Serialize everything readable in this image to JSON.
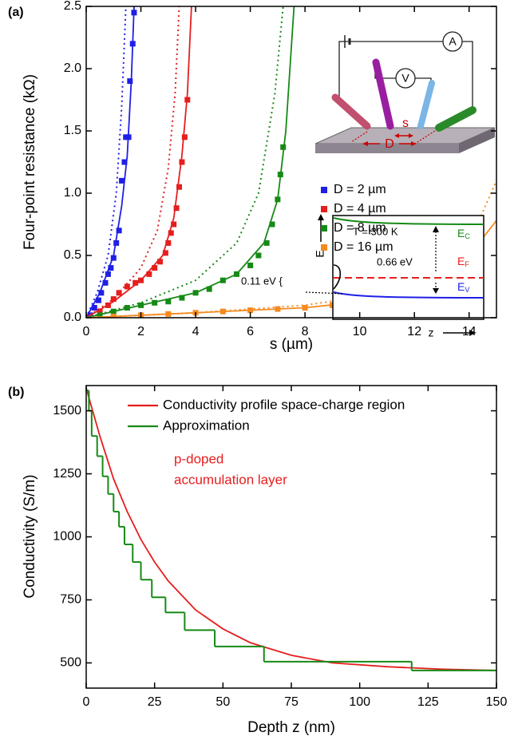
{
  "chart_data": [
    {
      "type": "scatter",
      "panel_label": "(a)",
      "xlabel": "s (µm)",
      "ylabel": "Four-point resistance (kΩ)",
      "xlim": [
        0,
        15
      ],
      "ylim": [
        0,
        2.5
      ],
      "xticks": [
        0,
        2,
        4,
        6,
        8,
        10,
        12,
        14
      ],
      "yticks": [
        {
          "value": 0,
          "label": "0.0"
        },
        0.5,
        {
          "value": 1,
          "label": "1.0"
        },
        1.5,
        {
          "value": 2,
          "label": "2.0"
        },
        2.5
      ],
      "legend": "right",
      "series": [
        {
          "name": "D = 2 µm",
          "color": "#1f1fe6",
          "x": [
            0.15,
            0.3,
            0.45,
            0.55,
            0.7,
            0.8,
            0.9,
            1.0,
            1.1,
            1.2,
            1.3,
            1.4,
            1.45,
            1.55,
            1.6,
            1.7,
            1.75
          ],
          "values": [
            0.02,
            0.08,
            0.14,
            0.2,
            0.28,
            0.35,
            0.4,
            0.48,
            0.6,
            0.7,
            1.1,
            1.25,
            1.45,
            1.45,
            1.9,
            2.2,
            2.45
          ],
          "fit": {
            "x": [
              0,
              0.5,
              1.0,
              1.3,
              1.5,
              1.65,
              1.75
            ],
            "values": [
              0,
              0.2,
              0.5,
              0.9,
              1.3,
              1.9,
              2.5
            ]
          },
          "model": {
            "x": [
              0,
              0.4,
              0.8,
              1.1,
              1.3,
              1.45
            ],
            "values": [
              0,
              0.2,
              0.5,
              1.0,
              1.7,
              2.5
            ]
          }
        },
        {
          "name": "D = 4 µm",
          "color": "#e61e1e",
          "x": [
            0.5,
            0.8,
            1.0,
            1.2,
            1.5,
            1.8,
            2.0,
            2.3,
            2.5,
            2.7,
            2.9,
            3.0,
            3.1,
            3.2,
            3.3,
            3.4,
            3.5,
            3.6,
            3.7
          ],
          "values": [
            0.05,
            0.1,
            0.15,
            0.2,
            0.25,
            0.28,
            0.3,
            0.35,
            0.4,
            0.45,
            0.52,
            0.6,
            0.68,
            0.75,
            0.88,
            1.05,
            1.25,
            1.45,
            1.75
          ],
          "fit": {
            "x": [
              0,
              1,
              2,
              2.8,
              3.2,
              3.5,
              3.7,
              3.85
            ],
            "values": [
              0,
              0.13,
              0.3,
              0.5,
              0.8,
              1.3,
              1.8,
              2.5
            ]
          },
          "model": {
            "x": [
              0,
              1,
              2,
              2.6,
              3.0,
              3.25,
              3.4
            ],
            "values": [
              0,
              0.15,
              0.4,
              0.7,
              1.2,
              1.8,
              2.5
            ]
          }
        },
        {
          "name": "D = 8 µm",
          "color": "#168a16",
          "x": [
            0.5,
            1,
            1.5,
            2,
            2.5,
            3,
            3.5,
            4,
            4.5,
            5,
            5.5,
            6,
            6.3,
            6.6,
            6.8,
            7.0,
            7.1,
            7.2
          ],
          "values": [
            0.02,
            0.05,
            0.08,
            0.1,
            0.12,
            0.13,
            0.16,
            0.2,
            0.23,
            0.3,
            0.35,
            0.42,
            0.5,
            0.6,
            0.75,
            0.95,
            1.15,
            1.37
          ],
          "fit": {
            "x": [
              0,
              2,
              4,
              5.5,
              6.5,
              7,
              7.3,
              7.6
            ],
            "values": [
              0,
              0.1,
              0.2,
              0.35,
              0.6,
              0.95,
              1.5,
              2.5
            ]
          },
          "model": {
            "x": [
              0,
              2,
              4,
              5.5,
              6.3,
              6.9,
              7.2
            ],
            "values": [
              0,
              0.12,
              0.3,
              0.6,
              1.0,
              1.8,
              2.5
            ]
          }
        },
        {
          "name": "D = 16 µm",
          "color": "#f58a1e",
          "x": [
            1,
            2,
            3,
            4,
            5,
            6,
            7,
            8,
            9,
            10,
            11,
            12,
            12.5,
            13,
            13.5,
            14
          ],
          "values": [
            0.01,
            0.02,
            0.03,
            0.04,
            0.05,
            0.06,
            0.07,
            0.08,
            0.1,
            0.12,
            0.16,
            0.22,
            0.25,
            0.3,
            0.36,
            0.48
          ],
          "fit": {
            "x": [
              0,
              4,
              8,
              11,
              13,
              14,
              15
            ],
            "values": [
              0,
              0.04,
              0.08,
              0.15,
              0.3,
              0.5,
              0.78
            ]
          },
          "model": {
            "x": [
              0,
              4,
              8,
              11,
              13,
              14,
              15
            ],
            "values": [
              0,
              0.04,
              0.1,
              0.2,
              0.35,
              0.6,
              1.1
            ]
          }
        }
      ],
      "inset": {
        "voltmeter": "V",
        "ammeter": "A",
        "spacing": "s",
        "distance": "D"
      }
    },
    {
      "type": "line",
      "panel_label": "(b)",
      "xlabel": "Depth z (nm)",
      "ylabel": "Conductivity (S/m)",
      "xlim": [
        0,
        150
      ],
      "ylim": [
        400,
        1600
      ],
      "xticks": [
        0,
        25,
        50,
        75,
        100,
        125,
        150
      ],
      "yticks": [
        500,
        750,
        1000,
        1250,
        1500
      ],
      "legend": "top",
      "series": [
        {
          "name": "Conductivity profile space-charge region",
          "color": "#e61e1e",
          "x": [
            0,
            5,
            10,
            15,
            20,
            25,
            30,
            40,
            50,
            60,
            75,
            90,
            110,
            130,
            150
          ],
          "values": [
            1590,
            1400,
            1230,
            1100,
            990,
            900,
            825,
            710,
            635,
            580,
            530,
            500,
            485,
            475,
            470
          ]
        },
        {
          "name": "Approximation",
          "color": "#168a16",
          "bins": [
            0,
            1,
            2,
            4,
            6,
            8,
            10,
            12,
            14,
            17,
            20,
            24,
            29,
            36,
            47,
            65,
            119,
            150
          ],
          "values": [
            1580,
            1500,
            1400,
            1320,
            1240,
            1170,
            1100,
            1040,
            970,
            900,
            830,
            760,
            700,
            630,
            565,
            505,
            470
          ]
        }
      ],
      "annotation": [
        "p-doped",
        "accumulation layer"
      ],
      "inset": {
        "energy_axis": "E",
        "depth_axis": "z",
        "temperature": "T = 300 K",
        "conduction": {
          "main": "E",
          "sub": "C"
        },
        "fermi": {
          "main": "E",
          "sub": "F"
        },
        "valence": {
          "main": "E",
          "sub": "V"
        },
        "gap": "0.66 eV",
        "width": "0.11 eV {"
      }
    }
  ]
}
